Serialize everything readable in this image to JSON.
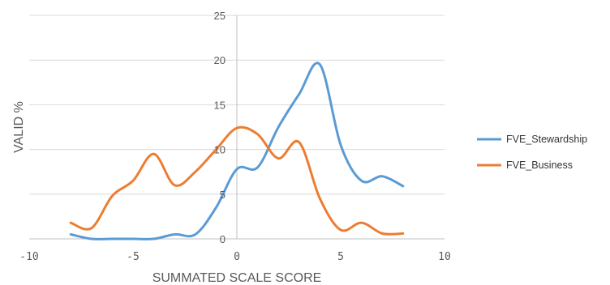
{
  "chart_data": {
    "type": "line",
    "xlabel": "SUMMATED SCALE SCORE",
    "ylabel": "VALID %",
    "xlim": [
      -10,
      10
    ],
    "ylim": [
      0,
      25
    ],
    "xticks": [
      -10,
      -5,
      0,
      5,
      10
    ],
    "yticks": [
      0,
      5,
      10,
      15,
      20,
      25
    ],
    "grid": "horizontal",
    "legend_position": "right",
    "smooth": true,
    "series": [
      {
        "name": "FVE_Stewardship",
        "color": "#5b9bd5",
        "x": [
          -8,
          -7,
          -6,
          -5,
          -4,
          -3,
          -2,
          -1,
          0,
          1,
          2,
          3,
          4,
          5,
          6,
          7,
          8
        ],
        "values": [
          0.5,
          0,
          0,
          0,
          0,
          0.5,
          0.5,
          3.5,
          7.8,
          8,
          12.5,
          16.2,
          19.5,
          10.5,
          6.5,
          7,
          5.9
        ]
      },
      {
        "name": "FVE_Business",
        "color": "#ed7d31",
        "x": [
          -8,
          -7,
          -6,
          -5,
          -4,
          -3,
          -2,
          -1,
          0,
          1,
          2,
          3,
          4,
          5,
          6,
          7,
          8
        ],
        "values": [
          1.8,
          1.2,
          4.8,
          6.5,
          9.5,
          6,
          7.5,
          10,
          12.4,
          11.7,
          9,
          10.8,
          4.5,
          1,
          1.8,
          0.6,
          0.6
        ]
      }
    ]
  }
}
